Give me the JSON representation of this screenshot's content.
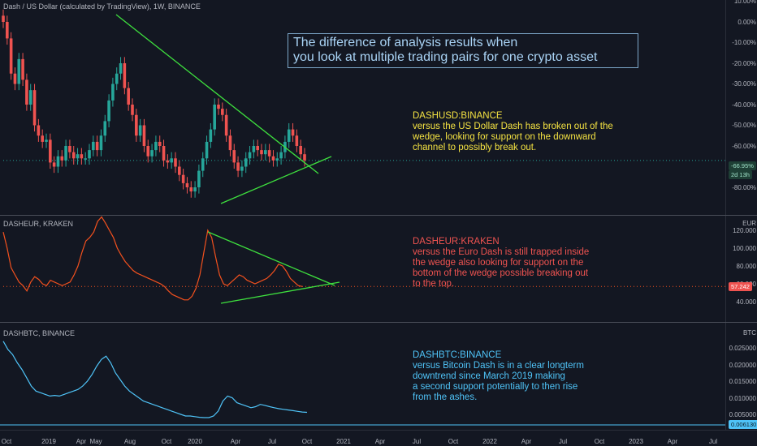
{
  "panes": {
    "usd": {
      "header": "Dash / US Dollar (calculated by TradingView), 1W, BINANCE",
      "axis_ticks": [
        "10.00%",
        "0.00%",
        "-10.00%",
        "-20.00%",
        "-30.00%",
        "-40.00%",
        "-50.00%",
        "-60.00%",
        "-70.00%",
        "-80.00%"
      ],
      "last_value": "-66.95%",
      "countdown": "2d 13h",
      "note_title": "DASHUSD:BINANCE",
      "note_lines": [
        "versus the US Dollar Dash has broken out of the",
        "wedge, looking for support on the downward",
        "channel to possibly break out."
      ]
    },
    "eur": {
      "header": "DASHEUR, KRAKEN",
      "axis_unit": "EUR",
      "axis_ticks": [
        "120.000",
        "100.000",
        "80.000",
        "60.000",
        "40.000"
      ],
      "last_value": "57.242",
      "note_title": "DASHEUR:KRAKEN",
      "note_lines": [
        "versus the Euro Dash is still trapped inside",
        "the wedge also looking for support on the",
        "bottom of the wedge possible breaking out",
        "to the top."
      ]
    },
    "btc": {
      "header": "DASHBTC, BINANCE",
      "axis_unit": "BTC",
      "axis_ticks": [
        "0.025000",
        "0.020000",
        "0.015000",
        "0.010000",
        "0.005000"
      ],
      "last_value": "0.006130",
      "note_title": "DASHBTC:BINANCE",
      "note_lines": [
        "versus Bitcoin Dash is in a clear longterm",
        "downtrend since March 2019 making",
        "a second support potentially to then rise",
        "from the ashes."
      ]
    }
  },
  "headline_lines": [
    "The difference of analysis results when",
    "you look at multiple trading pairs for one crypto asset"
  ],
  "time_axis": [
    "Oct",
    "2019",
    "Apr",
    "May",
    "Aug",
    "Oct",
    "2020",
    "Apr",
    "Jul",
    "Oct",
    "2021",
    "Apr",
    "Jul",
    "Oct",
    "2022",
    "Apr",
    "Jul",
    "Oct",
    "2023",
    "Apr",
    "Jul"
  ],
  "colors": {
    "background": "#131722",
    "candle_up": "#26a69a",
    "candle_down": "#ef5350",
    "trendline": "#3ee03e",
    "eur_line": "#f4511e",
    "btc_line": "#4fc3f7",
    "usd_note": "#f5e342",
    "eur_note": "#ef5350",
    "btc_note": "#4fc3f7",
    "headline": "#a9d3f5"
  },
  "chart_data": [
    {
      "type": "candlestick",
      "title": "Dash / US Dollar (calculated by TradingView), 1W, BINANCE",
      "ylabel": "%",
      "ylim": [
        -88,
        10
      ],
      "close": [
        0,
        -8,
        -25,
        -30,
        -18,
        -28,
        -40,
        -33,
        -50,
        -55,
        -58,
        -57,
        -68,
        -70,
        -65,
        -67,
        -60,
        -63,
        -66,
        -64,
        -66,
        -66,
        -62,
        -58,
        -62,
        -55,
        -48,
        -38,
        -30,
        -25,
        -20,
        -32,
        -40,
        -45,
        -55,
        -50,
        -60,
        -65,
        -62,
        -58,
        -60,
        -67,
        -68,
        -66,
        -70,
        -74,
        -78,
        -80,
        -82,
        -80,
        -72,
        -66,
        -58,
        -52,
        -40,
        -42,
        -45,
        -55,
        -62,
        -68,
        -72,
        -70,
        -66,
        -63,
        -60,
        -62,
        -64,
        -62,
        -65,
        -67,
        -66,
        -63,
        -58,
        -52,
        -55,
        -60,
        -64,
        -67
      ]
    },
    {
      "type": "line",
      "title": "DASHEUR, KRAKEN",
      "ylabel": "EUR",
      "ylim": [
        35,
        130
      ],
      "values": [
        118,
        100,
        78,
        70,
        62,
        58,
        52,
        62,
        68,
        65,
        60,
        58,
        64,
        62,
        60,
        58,
        60,
        62,
        70,
        80,
        95,
        108,
        112,
        118,
        130,
        135,
        128,
        120,
        112,
        100,
        92,
        85,
        80,
        75,
        72,
        70,
        68,
        66,
        64,
        62,
        60,
        57,
        52,
        48,
        46,
        44,
        42,
        42,
        46,
        55,
        70,
        95,
        120,
        112,
        90,
        70,
        60,
        58,
        62,
        66,
        70,
        68,
        64,
        62,
        60,
        62,
        64,
        66,
        70,
        75,
        82,
        80,
        74,
        66,
        62,
        58,
        57
      ]
    },
    {
      "type": "line",
      "title": "DASHBTC, BINANCE",
      "ylabel": "BTC",
      "ylim": [
        0.004,
        0.028
      ],
      "values": [
        0.0275,
        0.025,
        0.0235,
        0.021,
        0.019,
        0.0165,
        0.014,
        0.0125,
        0.012,
        0.0115,
        0.011,
        0.0112,
        0.011,
        0.0115,
        0.012,
        0.0125,
        0.013,
        0.014,
        0.0155,
        0.0175,
        0.02,
        0.022,
        0.023,
        0.021,
        0.018,
        0.016,
        0.014,
        0.0125,
        0.0115,
        0.0105,
        0.0095,
        0.009,
        0.0085,
        0.008,
        0.0075,
        0.007,
        0.0065,
        0.006,
        0.0055,
        0.005,
        0.005,
        0.0048,
        0.0046,
        0.0045,
        0.0045,
        0.005,
        0.0065,
        0.0095,
        0.011,
        0.0105,
        0.009,
        0.0085,
        0.008,
        0.0075,
        0.0078,
        0.0085,
        0.0082,
        0.0078,
        0.0075,
        0.0072,
        0.007,
        0.0068,
        0.0066,
        0.0064,
        0.0062,
        0.0061
      ]
    }
  ]
}
